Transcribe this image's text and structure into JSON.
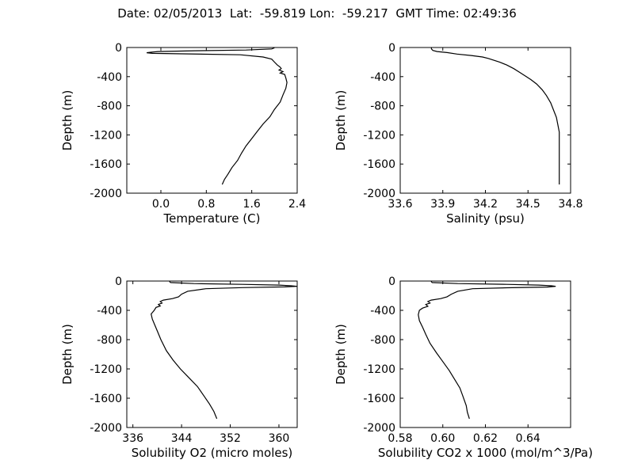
{
  "figure": {
    "title": "Date: 02/05/2013  Lat:  -59.819 Lon:  -59.217  GMT Time: 02:49:36"
  },
  "chart_data": [
    {
      "type": "line",
      "xlabel": "Temperature (C)",
      "ylabel": "Depth (m)",
      "xlim": [
        -0.6,
        2.4
      ],
      "ylim": [
        -2000,
        0
      ],
      "xticks": [
        "0.0",
        "0.8",
        "1.6",
        "2.4"
      ],
      "xtick_values": [
        0.0,
        0.8,
        1.6,
        2.4
      ],
      "yticks": [
        "0",
        "-400",
        "-800",
        "-1200",
        "-1600",
        "-2000"
      ],
      "ytick_values": [
        0,
        -400,
        -800,
        -1200,
        -1600,
        -2000
      ],
      "series": [
        {
          "points": [
            [
              2.0,
              -5
            ],
            [
              1.95,
              -20
            ],
            [
              1.5,
              -35
            ],
            [
              0.6,
              -45
            ],
            [
              -0.05,
              -55
            ],
            [
              -0.18,
              -65
            ],
            [
              -0.25,
              -72
            ],
            [
              -0.15,
              -80
            ],
            [
              0.5,
              -88
            ],
            [
              1.4,
              -100
            ],
            [
              1.8,
              -130
            ],
            [
              1.95,
              -160
            ],
            [
              2.0,
              -200
            ],
            [
              2.05,
              -240
            ],
            [
              2.1,
              -270
            ],
            [
              2.12,
              -290
            ],
            [
              2.08,
              -310
            ],
            [
              2.15,
              -330
            ],
            [
              2.1,
              -350
            ],
            [
              2.18,
              -370
            ],
            [
              2.2,
              -420
            ],
            [
              2.22,
              -480
            ],
            [
              2.2,
              -560
            ],
            [
              2.15,
              -650
            ],
            [
              2.1,
              -750
            ],
            [
              2.0,
              -850
            ],
            [
              1.92,
              -950
            ],
            [
              1.8,
              -1050
            ],
            [
              1.7,
              -1150
            ],
            [
              1.6,
              -1250
            ],
            [
              1.5,
              -1350
            ],
            [
              1.42,
              -1450
            ],
            [
              1.35,
              -1550
            ],
            [
              1.25,
              -1650
            ],
            [
              1.18,
              -1740
            ],
            [
              1.12,
              -1810
            ],
            [
              1.08,
              -1880
            ]
          ]
        }
      ]
    },
    {
      "type": "line",
      "xlabel": "Salinity (psu)",
      "ylabel": "Depth (m)",
      "xlim": [
        33.6,
        34.8
      ],
      "ylim": [
        -2000,
        0
      ],
      "xticks": [
        "33.6",
        "33.9",
        "34.2",
        "34.5",
        "34.8"
      ],
      "xtick_values": [
        33.6,
        33.9,
        34.2,
        34.5,
        34.8
      ],
      "yticks": [
        "0",
        "-400",
        "-800",
        "-1200",
        "-1600",
        "-2000"
      ],
      "ytick_values": [
        0,
        -400,
        -800,
        -1200,
        -1600,
        -2000
      ],
      "series": [
        {
          "points": [
            [
              33.82,
              -5
            ],
            [
              33.82,
              -20
            ],
            [
              33.83,
              -40
            ],
            [
              33.86,
              -55
            ],
            [
              33.93,
              -70
            ],
            [
              34.0,
              -90
            ],
            [
              34.1,
              -110
            ],
            [
              34.18,
              -130
            ],
            [
              34.22,
              -150
            ],
            [
              34.25,
              -170
            ],
            [
              34.3,
              -200
            ],
            [
              34.35,
              -240
            ],
            [
              34.4,
              -290
            ],
            [
              34.44,
              -340
            ],
            [
              34.48,
              -390
            ],
            [
              34.52,
              -440
            ],
            [
              34.56,
              -500
            ],
            [
              34.6,
              -580
            ],
            [
              34.63,
              -660
            ],
            [
              34.66,
              -760
            ],
            [
              34.68,
              -860
            ],
            [
              34.7,
              -960
            ],
            [
              34.71,
              -1060
            ],
            [
              34.72,
              -1160
            ],
            [
              34.72,
              -1300
            ],
            [
              34.72,
              -1450
            ],
            [
              34.72,
              -1600
            ],
            [
              34.72,
              -1750
            ],
            [
              34.72,
              -1880
            ]
          ]
        }
      ]
    },
    {
      "type": "line",
      "xlabel": "Solubility O2 (micro moles)",
      "ylabel": "Depth (m)",
      "xlim": [
        335,
        363
      ],
      "ylim": [
        -2000,
        0
      ],
      "xticks": [
        "336",
        "344",
        "352",
        "360"
      ],
      "xtick_values": [
        336,
        344,
        352,
        360
      ],
      "yticks": [
        "0",
        "-400",
        "-800",
        "-1200",
        "-1600",
        "-2000"
      ],
      "ytick_values": [
        0,
        -400,
        -800,
        -1200,
        -1600,
        -2000
      ],
      "series": [
        {
          "points": [
            [
              342.0,
              -5
            ],
            [
              342.2,
              -20
            ],
            [
              346,
              -35
            ],
            [
              354,
              -45
            ],
            [
              360,
              -55
            ],
            [
              362,
              -65
            ],
            [
              363,
              -72
            ],
            [
              361,
              -80
            ],
            [
              354,
              -90
            ],
            [
              348,
              -105
            ],
            [
              345,
              -140
            ],
            [
              344,
              -180
            ],
            [
              343.5,
              -215
            ],
            [
              342.5,
              -240
            ],
            [
              341,
              -260
            ],
            [
              340.5,
              -280
            ],
            [
              340.8,
              -300
            ],
            [
              340.2,
              -320
            ],
            [
              340.5,
              -340
            ],
            [
              339.8,
              -360
            ],
            [
              339.5,
              -400
            ],
            [
              339.0,
              -450
            ],
            [
              339.2,
              -520
            ],
            [
              339.6,
              -600
            ],
            [
              340.0,
              -680
            ],
            [
              340.6,
              -800
            ],
            [
              341.5,
              -950
            ],
            [
              342.6,
              -1080
            ],
            [
              343.8,
              -1200
            ],
            [
              345.2,
              -1320
            ],
            [
              346.6,
              -1440
            ],
            [
              347.6,
              -1560
            ],
            [
              348.6,
              -1680
            ],
            [
              349.3,
              -1780
            ],
            [
              349.8,
              -1880
            ]
          ]
        }
      ]
    },
    {
      "type": "line",
      "xlabel": "Solubility CO2 x 1000 (mol/m^3/Pa)",
      "ylabel": "Depth (m)",
      "xlim": [
        0.58,
        0.66
      ],
      "ylim": [
        -2000,
        0
      ],
      "xticks": [
        "0.58",
        "0.60",
        "0.62",
        "0.64"
      ],
      "xtick_values": [
        0.58,
        0.6,
        0.62,
        0.64
      ],
      "yticks": [
        "0",
        "-400",
        "-800",
        "-1200",
        "-1600",
        "-2000"
      ],
      "ytick_values": [
        0,
        -400,
        -800,
        -1200,
        -1600,
        -2000
      ],
      "series": [
        {
          "points": [
            [
              0.5945,
              -5
            ],
            [
              0.595,
              -20
            ],
            [
              0.607,
              -35
            ],
            [
              0.63,
              -45
            ],
            [
              0.645,
              -55
            ],
            [
              0.651,
              -65
            ],
            [
              0.653,
              -72
            ],
            [
              0.649,
              -82
            ],
            [
              0.63,
              -92
            ],
            [
              0.614,
              -105
            ],
            [
              0.607,
              -140
            ],
            [
              0.604,
              -180
            ],
            [
              0.602,
              -215
            ],
            [
              0.599,
              -240
            ],
            [
              0.5945,
              -260
            ],
            [
              0.593,
              -280
            ],
            [
              0.594,
              -300
            ],
            [
              0.592,
              -320
            ],
            [
              0.593,
              -345
            ],
            [
              0.5905,
              -370
            ],
            [
              0.589,
              -400
            ],
            [
              0.5885,
              -460
            ],
            [
              0.589,
              -540
            ],
            [
              0.5905,
              -630
            ],
            [
              0.592,
              -730
            ],
            [
              0.594,
              -850
            ],
            [
              0.597,
              -980
            ],
            [
              0.6,
              -1100
            ],
            [
              0.603,
              -1220
            ],
            [
              0.6055,
              -1340
            ],
            [
              0.608,
              -1460
            ],
            [
              0.6095,
              -1580
            ],
            [
              0.611,
              -1700
            ],
            [
              0.6115,
              -1790
            ],
            [
              0.6125,
              -1880
            ]
          ]
        }
      ]
    }
  ]
}
